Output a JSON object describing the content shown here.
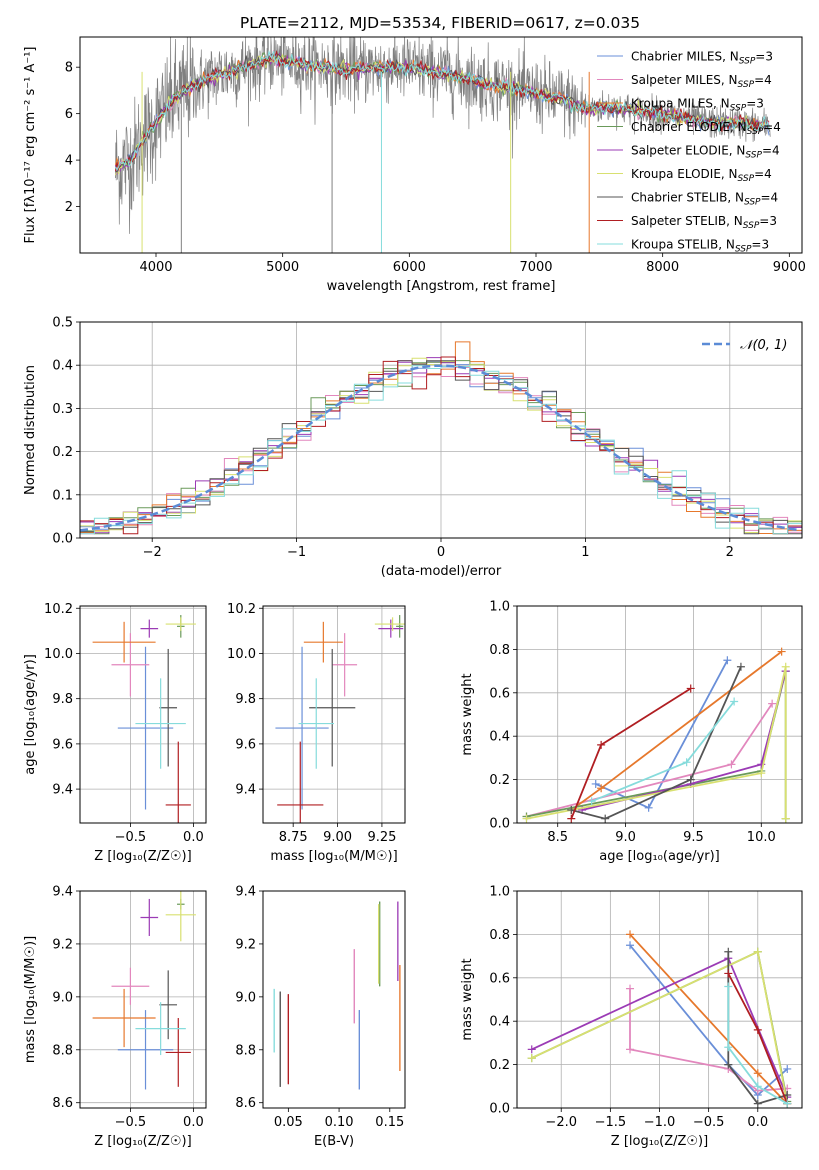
{
  "title": "PLATE=2112, MJD=53534, FIBERID=0617, z=0.035",
  "series": [
    {
      "name": "Chabrier MILES",
      "nssp": "3",
      "color": "#6a8fd8"
    },
    {
      "name": "Salpeter MILES",
      "nssp": "4",
      "color": "#e287bd"
    },
    {
      "name": "Kroupa MILES",
      "nssp": "3",
      "color": "#e6782c"
    },
    {
      "name": "Chabrier ELODIE",
      "nssp": "4",
      "color": "#6a9a5a"
    },
    {
      "name": "Salpeter ELODIE",
      "nssp": "4",
      "color": "#9b3bb5"
    },
    {
      "name": "Kroupa ELODIE",
      "nssp": "4",
      "color": "#d8e070"
    },
    {
      "name": "Chabrier STELIB",
      "nssp": "4",
      "color": "#555555"
    },
    {
      "name": "Salpeter STELIB",
      "nssp": "3",
      "color": "#b01e22"
    },
    {
      "name": "Kroupa STELIB",
      "nssp": "3",
      "color": "#86dcdc"
    }
  ],
  "chart_data": [
    {
      "id": "spectrum",
      "type": "line",
      "xlabel": "wavelength [Angstrom, rest frame]",
      "ylabel": "Flux [fλ10⁻¹⁷ erg cm⁻² s⁻¹ A⁻¹]",
      "xlim": [
        3400,
        9100
      ],
      "ylim": [
        0,
        9.3
      ],
      "xticks": [
        4000,
        5000,
        6000,
        7000,
        8000,
        9000
      ],
      "yticks": [
        2,
        4,
        6,
        8
      ],
      "data_color": "#808080",
      "continuum": {
        "x": [
          3680,
          3800,
          3900,
          4000,
          4100,
          4200,
          4300,
          4500,
          4700,
          4900,
          5000,
          5200,
          5500,
          5800,
          6000,
          6300,
          6600,
          6900,
          7200,
          7400,
          7600,
          7800,
          8000,
          8200,
          8400,
          8600,
          8800
        ],
        "y": [
          3.6,
          4.0,
          4.9,
          5.6,
          6.4,
          6.9,
          7.2,
          7.7,
          8.0,
          8.4,
          8.3,
          8.1,
          7.9,
          8.0,
          8.0,
          7.7,
          7.3,
          7.0,
          6.6,
          6.2,
          6.3,
          6.1,
          6.0,
          5.8,
          5.6,
          5.6,
          5.5
        ]
      }
    },
    {
      "id": "residuals",
      "type": "line",
      "xlabel": "(data-model)/error",
      "ylabel": "Normed distribution",
      "xlim": [
        -2.5,
        2.5
      ],
      "ylim": [
        0,
        0.5
      ],
      "xticks": [
        -2,
        -1,
        0,
        1,
        2
      ],
      "yticks": [
        0.0,
        0.1,
        0.2,
        0.3,
        0.4,
        0.5
      ],
      "legend": "𝒩(0, 1)",
      "legend_position": "top-right",
      "gaussian_color": "#5b8bd6"
    },
    {
      "id": "age_vs_z",
      "type": "scatter",
      "xlabel": "Z [log₁₀(Z/Z☉)]",
      "ylabel": "age  [log₁₀(age/yr)]",
      "xlim": [
        -0.9,
        0.1
      ],
      "ylim": [
        9.25,
        10.21
      ],
      "xticks": [
        -0.5,
        0.0
      ],
      "yticks": [
        9.4,
        9.6,
        9.8,
        10.0,
        10.2
      ],
      "points": [
        {
          "x": -0.38,
          "y": 9.67,
          "xerr": 0.22,
          "yerr": 0.36
        },
        {
          "x": -0.5,
          "y": 9.95,
          "xerr": 0.15,
          "yerr": 0.14
        },
        {
          "x": -0.55,
          "y": 10.05,
          "xerr": 0.25,
          "yerr": 0.09
        },
        {
          "x": -0.1,
          "y": 10.12,
          "xerr": 0.03,
          "yerr": 0.05
        },
        {
          "x": -0.35,
          "y": 10.11,
          "xerr": 0.07,
          "yerr": 0.04
        },
        {
          "x": -0.1,
          "y": 10.13,
          "xerr": 0.12,
          "yerr": 0.03
        },
        {
          "x": -0.2,
          "y": 9.76,
          "xerr": 0.07,
          "yerr": 0.26
        },
        {
          "x": -0.12,
          "y": 9.33,
          "xerr": 0.1,
          "yerr": 0.28
        },
        {
          "x": -0.26,
          "y": 9.69,
          "xerr": 0.2,
          "yerr": 0.2
        }
      ]
    },
    {
      "id": "age_vs_mass",
      "type": "scatter",
      "xlabel": "mass [log₁₀(M/M☉)]",
      "ylabel": "",
      "xlim": [
        8.58,
        9.38
      ],
      "ylim": [
        9.25,
        10.21
      ],
      "xticks": [
        8.75,
        9.0,
        9.25
      ],
      "yticks": [
        9.4,
        9.6,
        9.8,
        10.0,
        10.2
      ],
      "points": [
        {
          "x": 8.8,
          "y": 9.67,
          "xerr": 0.15,
          "yerr": 0.36
        },
        {
          "x": 9.04,
          "y": 9.95,
          "xerr": 0.07,
          "yerr": 0.14
        },
        {
          "x": 8.92,
          "y": 10.05,
          "xerr": 0.11,
          "yerr": 0.09
        },
        {
          "x": 9.35,
          "y": 10.12,
          "xerr": 0.02,
          "yerr": 0.05
        },
        {
          "x": 9.3,
          "y": 10.11,
          "xerr": 0.07,
          "yerr": 0.04
        },
        {
          "x": 9.31,
          "y": 10.13,
          "xerr": 0.1,
          "yerr": 0.03
        },
        {
          "x": 8.97,
          "y": 9.76,
          "xerr": 0.13,
          "yerr": 0.26
        },
        {
          "x": 8.79,
          "y": 9.33,
          "xerr": 0.13,
          "yerr": 0.28
        },
        {
          "x": 8.88,
          "y": 9.69,
          "xerr": 0.1,
          "yerr": 0.2
        }
      ]
    },
    {
      "id": "weight_vs_age",
      "type": "line",
      "xlabel": "age  [log₁₀(age/yr)]",
      "ylabel": "mass weight",
      "xlim": [
        8.2,
        10.3
      ],
      "ylim": [
        0,
        1
      ],
      "xticks": [
        8.5,
        9.0,
        9.5,
        10.0
      ],
      "yticks": [
        0.0,
        0.2,
        0.4,
        0.6,
        0.8,
        1.0
      ],
      "lines": [
        {
          "x": [
            8.78,
            9.17,
            9.75
          ],
          "y": [
            0.18,
            0.07,
            0.75
          ]
        },
        {
          "x": [
            8.27,
            9.78,
            10.08
          ],
          "y": [
            0.03,
            0.27,
            0.55
          ]
        },
        {
          "x": [
            8.6,
            8.82,
            10.15
          ],
          "y": [
            0.06,
            0.16,
            0.79
          ]
        },
        {
          "x": [
            8.27,
            10.0,
            10.18,
            10.18
          ],
          "y": [
            0.03,
            0.24,
            0.7,
            0.02
          ]
        },
        {
          "x": [
            8.68,
            9.48,
            10.0,
            10.18
          ],
          "y": [
            0.06,
            0.18,
            0.27,
            0.7
          ]
        },
        {
          "x": [
            8.27,
            10.0,
            10.18,
            10.18
          ],
          "y": [
            0.02,
            0.23,
            0.72,
            0.02
          ]
        },
        {
          "x": [
            8.6,
            8.85,
            9.48,
            9.85
          ],
          "y": [
            0.06,
            0.02,
            0.2,
            0.72
          ]
        },
        {
          "x": [
            8.6,
            8.82,
            9.48
          ],
          "y": [
            0.02,
            0.36,
            0.62
          ]
        },
        {
          "x": [
            8.75,
            9.45,
            9.8
          ],
          "y": [
            0.1,
            0.28,
            0.56
          ]
        }
      ]
    },
    {
      "id": "mass_vs_z",
      "type": "scatter",
      "xlabel": "Z [log₁₀(Z/Z☉)]",
      "ylabel": "mass [log₁₀(M/M☉)]",
      "xlim": [
        -0.9,
        0.1
      ],
      "ylim": [
        8.58,
        9.4
      ],
      "xticks": [
        -0.5,
        0.0
      ],
      "yticks": [
        8.6,
        8.8,
        9.0,
        9.2,
        9.4
      ],
      "points": [
        {
          "x": -0.38,
          "y": 8.8,
          "xerr": 0.22,
          "yerr": 0.15
        },
        {
          "x": -0.5,
          "y": 9.04,
          "xerr": 0.15,
          "yerr": 0.07
        },
        {
          "x": -0.55,
          "y": 8.92,
          "xerr": 0.25,
          "yerr": 0.11
        },
        {
          "x": -0.1,
          "y": 9.35,
          "xerr": 0.03,
          "yerr": 0.02
        },
        {
          "x": -0.35,
          "y": 9.3,
          "xerr": 0.07,
          "yerr": 0.07
        },
        {
          "x": -0.1,
          "y": 9.31,
          "xerr": 0.12,
          "yerr": 0.1
        },
        {
          "x": -0.2,
          "y": 8.97,
          "xerr": 0.07,
          "yerr": 0.13
        },
        {
          "x": -0.12,
          "y": 8.79,
          "xerr": 0.1,
          "yerr": 0.13
        },
        {
          "x": -0.26,
          "y": 8.88,
          "xerr": 0.2,
          "yerr": 0.1
        }
      ]
    },
    {
      "id": "mass_vs_ebv",
      "type": "scatter",
      "xlabel": "E(B-V)",
      "ylabel": "",
      "xlim": [
        0.025,
        0.165
      ],
      "ylim": [
        8.58,
        9.4
      ],
      "xticks": [
        0.05,
        0.1,
        0.15
      ],
      "yticks": [
        8.6,
        8.8,
        9.0,
        9.2,
        9.4
      ],
      "points": [
        {
          "x": 0.12,
          "y": 8.8,
          "yerr": 0.15
        },
        {
          "x": 0.115,
          "y": 9.04,
          "yerr": 0.14
        },
        {
          "x": 0.16,
          "y": 8.92,
          "yerr": 0.2
        },
        {
          "x": 0.14,
          "y": 9.2,
          "yerr": 0.16
        },
        {
          "x": 0.158,
          "y": 9.21,
          "yerr": 0.15
        },
        {
          "x": 0.139,
          "y": 9.2,
          "yerr": 0.15
        },
        {
          "x": 0.042,
          "y": 8.84,
          "yerr": 0.18
        },
        {
          "x": 0.05,
          "y": 8.84,
          "yerr": 0.17
        },
        {
          "x": 0.036,
          "y": 8.91,
          "yerr": 0.12
        }
      ]
    },
    {
      "id": "weight_vs_z",
      "type": "line",
      "xlabel": "Z [log₁₀(Z/Z☉)]",
      "ylabel": "mass weight",
      "xlim": [
        -2.45,
        0.45
      ],
      "ylim": [
        0,
        1
      ],
      "xticks": [
        -2.0,
        -1.5,
        -1.0,
        -0.5,
        0.0
      ],
      "yticks": [
        0.0,
        0.2,
        0.4,
        0.6,
        0.8,
        1.0
      ],
      "lines": [
        {
          "x": [
            -1.3,
            -0.3,
            0.0,
            0.3
          ],
          "y": [
            0.75,
            0.2,
            0.06,
            0.18
          ]
        },
        {
          "x": [
            -1.3,
            -1.3,
            -0.3,
            0.0,
            0.3
          ],
          "y": [
            0.55,
            0.27,
            0.18,
            0.08,
            0.09
          ]
        },
        {
          "x": [
            -1.3,
            0.0,
            0.3
          ],
          "y": [
            0.8,
            0.16,
            0.02
          ]
        },
        {
          "x": [
            -2.3,
            0.0,
            0.3
          ],
          "y": [
            0.23,
            0.72,
            0.03
          ]
        },
        {
          "x": [
            -2.3,
            -0.3,
            0.3
          ],
          "y": [
            0.27,
            0.69,
            0.05
          ]
        },
        {
          "x": [
            -2.3,
            0.0,
            0.3
          ],
          "y": [
            0.23,
            0.72,
            0.02
          ]
        },
        {
          "x": [
            -0.3,
            -0.3,
            0.0,
            0.3
          ],
          "y": [
            0.72,
            0.2,
            0.02,
            0.06
          ]
        },
        {
          "x": [
            -0.3,
            0.0,
            0.3
          ],
          "y": [
            0.62,
            0.36,
            0.02
          ]
        },
        {
          "x": [
            -0.3,
            -0.3,
            0.0,
            0.3
          ],
          "y": [
            0.56,
            0.28,
            0.1,
            0.02
          ]
        }
      ]
    }
  ]
}
